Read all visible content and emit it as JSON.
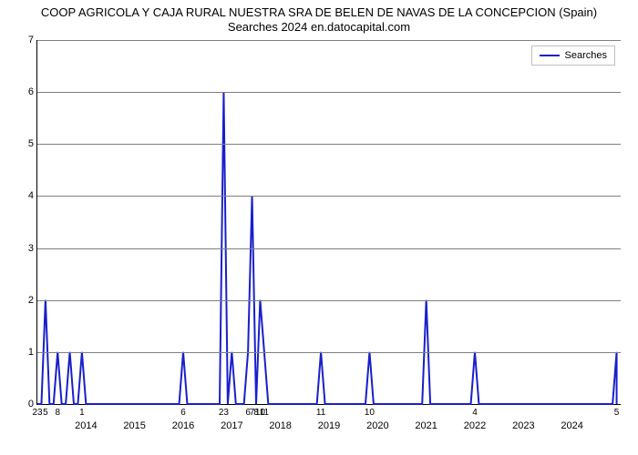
{
  "title_line1": "COOP AGRICOLA Y CAJA RURAL NUESTRA SRA DE BELEN DE NAVAS DE LA CONCEPCION (Spain)",
  "title_line2": "Searches 2024 en.datocapital.com",
  "chart": {
    "type": "line",
    "line_color": "#1920c9",
    "line_width": 2,
    "background_color": "#ffffff",
    "grid_color": "#7f7f7f",
    "ylim": [
      0,
      7
    ],
    "yticks": [
      0,
      1,
      2,
      3,
      4,
      5,
      6,
      7
    ],
    "ylabel": "Searches",
    "x_span_months": 144,
    "x_tick_top": [
      {
        "m": 0,
        "t": "23"
      },
      {
        "m": 2,
        "t": "5"
      },
      {
        "m": 5,
        "t": "8"
      },
      {
        "m": 11,
        "t": "1"
      },
      {
        "m": 36,
        "t": "6"
      },
      {
        "m": 46,
        "t": "23"
      },
      {
        "m": 52,
        "t": "6"
      },
      {
        "m": 53,
        "t": "7"
      },
      {
        "m": 54,
        "t": "8"
      },
      {
        "m": 55,
        "t": "10"
      },
      {
        "m": 56,
        "t": "11"
      },
      {
        "m": 70,
        "t": "11"
      },
      {
        "m": 82,
        "t": "10"
      },
      {
        "m": 108,
        "t": "4"
      },
      {
        "m": 143,
        "t": "5"
      }
    ],
    "x_tick_year": [
      {
        "m": 12,
        "t": "2014"
      },
      {
        "m": 24,
        "t": "2015"
      },
      {
        "m": 36,
        "t": "2016"
      },
      {
        "m": 48,
        "t": "2017"
      },
      {
        "m": 60,
        "t": "2018"
      },
      {
        "m": 72,
        "t": "2019"
      },
      {
        "m": 84,
        "t": "2020"
      },
      {
        "m": 96,
        "t": "2021"
      },
      {
        "m": 108,
        "t": "2022"
      },
      {
        "m": 120,
        "t": "2023"
      },
      {
        "m": 132,
        "t": "2024"
      }
    ],
    "points": [
      [
        0,
        0
      ],
      [
        1,
        0
      ],
      [
        2,
        2
      ],
      [
        3,
        0
      ],
      [
        4,
        0
      ],
      [
        5,
        1
      ],
      [
        6,
        0
      ],
      [
        7,
        0
      ],
      [
        8,
        1
      ],
      [
        9,
        0
      ],
      [
        10,
        0
      ],
      [
        11,
        1
      ],
      [
        12,
        0
      ],
      [
        35,
        0
      ],
      [
        36,
        1
      ],
      [
        37,
        0
      ],
      [
        44,
        0
      ],
      [
        45,
        0
      ],
      [
        46,
        6
      ],
      [
        47,
        0
      ],
      [
        48,
        1
      ],
      [
        49,
        0
      ],
      [
        50,
        0
      ],
      [
        51,
        0
      ],
      [
        52,
        1
      ],
      [
        53,
        4
      ],
      [
        54,
        0
      ],
      [
        55,
        2
      ],
      [
        56,
        1
      ],
      [
        57,
        0
      ],
      [
        69,
        0
      ],
      [
        70,
        1
      ],
      [
        71,
        0
      ],
      [
        81,
        0
      ],
      [
        82,
        1
      ],
      [
        83,
        0
      ],
      [
        95,
        0
      ],
      [
        96,
        2
      ],
      [
        97,
        0
      ],
      [
        107,
        0
      ],
      [
        108,
        1
      ],
      [
        109,
        0
      ],
      [
        142,
        0
      ],
      [
        143,
        1
      ]
    ],
    "legend_label": "Searches"
  }
}
